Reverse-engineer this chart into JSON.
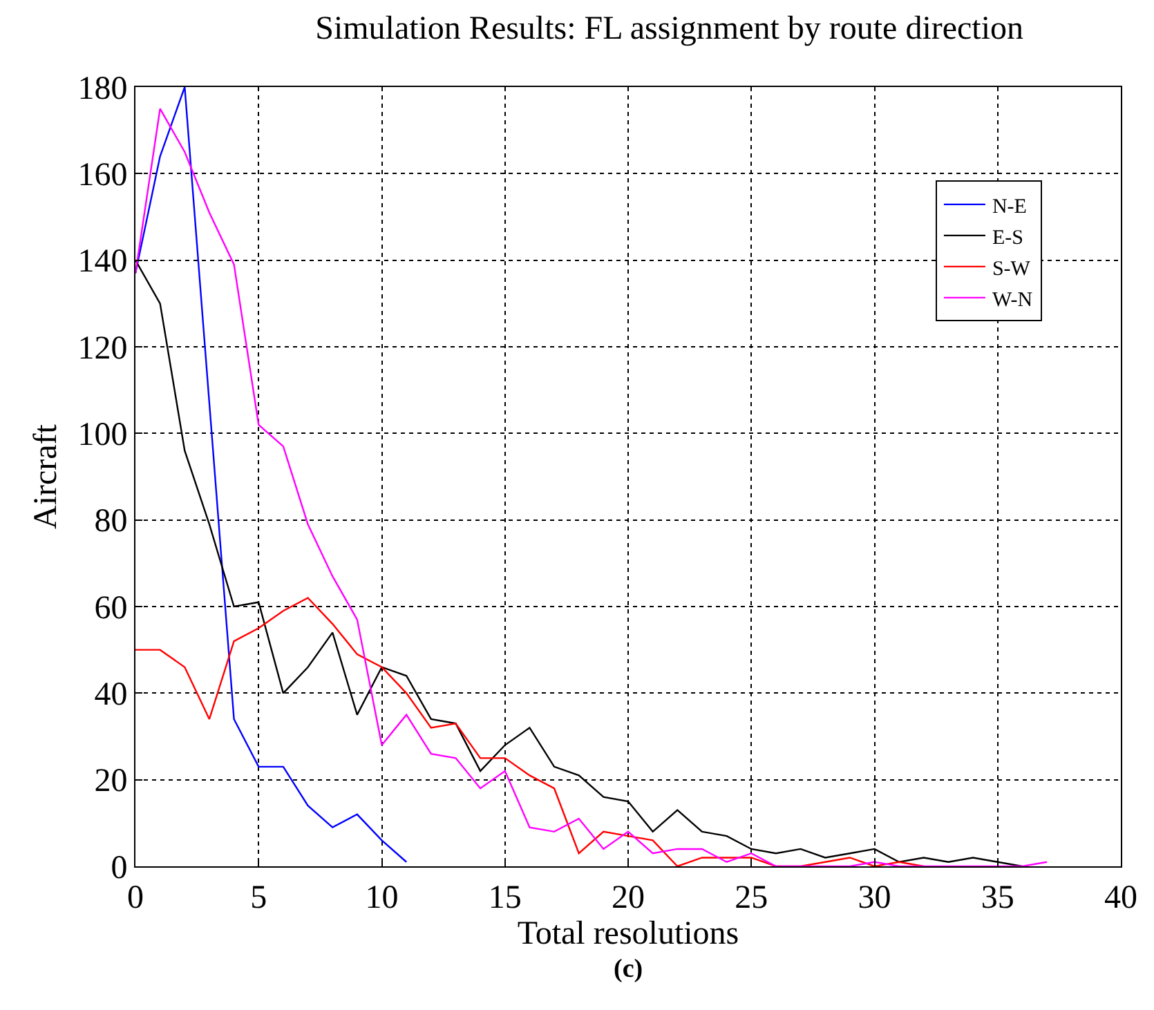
{
  "chart_data": {
    "type": "line",
    "title": "Simulation Results: FL assignment by route direction",
    "xlabel": "Total resolutions",
    "ylabel": "Aircraft",
    "annotations": [
      "(c)"
    ],
    "xlim": [
      0,
      40
    ],
    "xticks": [
      0,
      5,
      10,
      15,
      20,
      25,
      30,
      35,
      40
    ],
    "ylim": [
      0,
      180
    ],
    "yticks": [
      0,
      20,
      40,
      60,
      80,
      100,
      120,
      140,
      160,
      180
    ],
    "grid": true,
    "legend": "top right",
    "series": [
      {
        "name": "N-E",
        "color": "#0000ff",
        "x": [
          0,
          1,
          2,
          3,
          4,
          5,
          6,
          7,
          8,
          9,
          10,
          11
        ],
        "values": [
          137,
          164,
          180,
          107,
          34,
          23,
          23,
          14,
          9,
          12,
          6,
          1
        ]
      },
      {
        "name": "E-S",
        "color": "#000000",
        "x": [
          0,
          1,
          2,
          3,
          4,
          5,
          6,
          7,
          8,
          9,
          10,
          11,
          12,
          13,
          14,
          15,
          16,
          17,
          18,
          19,
          20,
          21,
          22,
          23,
          24,
          25,
          26,
          27,
          28,
          29,
          30,
          31,
          32,
          33,
          34,
          35,
          36
        ],
        "values": [
          140,
          130,
          96,
          79,
          60,
          61,
          40,
          46,
          54,
          35,
          46,
          44,
          34,
          33,
          22,
          28,
          32,
          23,
          21,
          16,
          15,
          8,
          13,
          8,
          7,
          4,
          3,
          4,
          2,
          3,
          4,
          1,
          2,
          1,
          2,
          1,
          0
        ]
      },
      {
        "name": "S-W",
        "color": "#ff0000",
        "x": [
          0,
          1,
          2,
          3,
          4,
          5,
          6,
          7,
          8,
          9,
          10,
          11,
          12,
          13,
          14,
          15,
          16,
          17,
          18,
          19,
          20,
          21,
          22,
          23,
          24,
          25,
          26,
          27,
          28,
          29,
          30,
          31,
          32
        ],
        "values": [
          50,
          50,
          46,
          34,
          52,
          55,
          59,
          62,
          56,
          49,
          46,
          40,
          32,
          33,
          25,
          25,
          21,
          18,
          3,
          8,
          7,
          6,
          0,
          2,
          2,
          2,
          0,
          0,
          1,
          2,
          0,
          1,
          0
        ]
      },
      {
        "name": "W-N",
        "color": "#ff00ff",
        "x": [
          0,
          1,
          2,
          3,
          4,
          5,
          6,
          7,
          8,
          9,
          10,
          11,
          12,
          13,
          14,
          15,
          16,
          17,
          18,
          19,
          20,
          21,
          22,
          23,
          24,
          25,
          26,
          27,
          28,
          29,
          30,
          31,
          32,
          33,
          34,
          35,
          36,
          37
        ],
        "values": [
          137,
          175,
          165,
          151,
          139,
          102,
          97,
          79,
          67,
          57,
          28,
          35,
          26,
          25,
          18,
          22,
          9,
          8,
          11,
          4,
          8,
          3,
          4,
          4,
          1,
          3,
          0,
          0,
          0,
          0,
          1,
          0,
          0,
          0,
          0,
          0,
          0,
          1
        ]
      }
    ]
  }
}
